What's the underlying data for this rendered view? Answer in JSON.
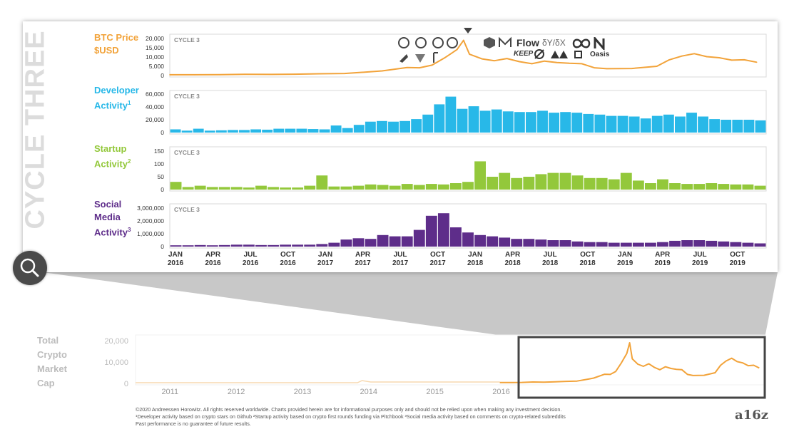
{
  "card": {
    "title": "CYCLE THREE",
    "btc_label_line1": "BTC Price",
    "btc_label_line2": "$USD",
    "dev_label_line1": "Developer",
    "dev_label_line2": "Activity",
    "dev_sup": "1",
    "startup_label_line1": "Startup",
    "startup_label_line2": "Activity",
    "startup_sup": "2",
    "social_label_line1": "Social",
    "social_label_line2": "Media",
    "social_label_line3": "Activity",
    "social_sup": "3",
    "logo_text_1": "Flow",
    "logo_text_2": "δY/δX",
    "logo_text_3": "KEEP",
    "logo_text_4": "Oasis"
  },
  "bottom": {
    "label_line1": "Total",
    "label_line2": "Crypto",
    "label_line3": "Market",
    "label_line4": "Cap"
  },
  "footer": {
    "line1": "©2020 Andreessen Horowitz. All rights reserved worldwide.       Charts provided herein are for informational purposes only and should not be relied upon when making any investment decision.",
    "line2": "¹Developer activity based on crypto stars on Github          ²Startup activity based on crypto first rounds funding via Pitchbook          ³Social media activity based on comments on crypto-related subreddits",
    "line3": "Past performance is no guarantee of future results.",
    "brand": "a16z"
  },
  "colors": {
    "btc": "#f2a33a",
    "developer": "#28b8e8",
    "startup": "#93c83b",
    "social": "#5e2d8a"
  },
  "chart_data": [
    {
      "type": "line",
      "title": "CYCLE 3",
      "ylabel": "BTC Price $USD",
      "ylim": [
        0,
        20000
      ],
      "yticks": [
        "20,000",
        "15,000",
        "10,000",
        "5,000",
        "0"
      ],
      "x": [
        "2016-01",
        "2016-03",
        "2016-05",
        "2016-07",
        "2016-09",
        "2016-11",
        "2017-01",
        "2017-03",
        "2017-05",
        "2017-06",
        "2017-08",
        "2017-09",
        "2017-10",
        "2017-11",
        "2017-12",
        "2017-12-17",
        "2018-01",
        "2018-02",
        "2018-03",
        "2018-04",
        "2018-05",
        "2018-06",
        "2018-07",
        "2018-08",
        "2018-09",
        "2018-10",
        "2018-11",
        "2018-12",
        "2019-02",
        "2019-04",
        "2019-05",
        "2019-06",
        "2019-07",
        "2019-08",
        "2019-09",
        "2019-10",
        "2019-11",
        "2019-12"
      ],
      "values": [
        430,
        420,
        450,
        650,
        610,
        740,
        950,
        1100,
        2000,
        2500,
        4300,
        4200,
        5600,
        9500,
        14000,
        19000,
        11500,
        9000,
        8000,
        9200,
        7500,
        6400,
        7800,
        7000,
        6600,
        6400,
        4200,
        3700,
        3800,
        5000,
        8500,
        10500,
        11800,
        10200,
        9600,
        8300,
        8500,
        7200
      ]
    },
    {
      "type": "bar",
      "title": "CYCLE 3",
      "ylabel": "Developer Activity",
      "ylim": [
        0,
        60000
      ],
      "yticks": [
        "60,000",
        "40,000",
        "20,000",
        "0"
      ],
      "values": [
        5000,
        3000,
        6000,
        3000,
        3500,
        4000,
        4000,
        5000,
        4500,
        6000,
        6000,
        6000,
        5500,
        5000,
        11000,
        7000,
        12000,
        17000,
        18000,
        17000,
        18000,
        21000,
        28000,
        44000,
        56000,
        37000,
        41000,
        34000,
        36000,
        33000,
        32000,
        32000,
        34000,
        31000,
        32000,
        31000,
        29000,
        28000,
        26000,
        26000,
        25000,
        22000,
        26000,
        28000,
        25000,
        31000,
        25000,
        21000,
        20000,
        20000,
        20000,
        19000
      ]
    },
    {
      "type": "bar",
      "title": "CYCLE 3",
      "ylabel": "Startup Activity",
      "ylim": [
        0,
        150
      ],
      "yticks": [
        "150",
        "100",
        "50",
        "0"
      ],
      "values": [
        30,
        10,
        15,
        10,
        10,
        10,
        8,
        15,
        10,
        8,
        8,
        15,
        55,
        12,
        12,
        15,
        20,
        18,
        15,
        22,
        18,
        22,
        20,
        25,
        30,
        110,
        50,
        65,
        45,
        50,
        60,
        65,
        65,
        55,
        45,
        45,
        40,
        65,
        35,
        25,
        40,
        25,
        22,
        22,
        25,
        22,
        20,
        20,
        15
      ]
    },
    {
      "type": "bar",
      "title": "CYCLE 3",
      "ylabel": "Social Media Activity",
      "ylim": [
        0,
        3000000
      ],
      "yticks": [
        "3,000,000",
        "2,000,000",
        "1,000,000",
        "0"
      ],
      "values": [
        100000,
        100000,
        120000,
        100000,
        120000,
        150000,
        150000,
        120000,
        120000,
        150000,
        150000,
        150000,
        200000,
        300000,
        550000,
        650000,
        600000,
        900000,
        800000,
        800000,
        1300000,
        2400000,
        2600000,
        1500000,
        1100000,
        900000,
        800000,
        700000,
        600000,
        600000,
        550000,
        500000,
        500000,
        400000,
        350000,
        350000,
        300000,
        300000,
        300000,
        300000,
        350000,
        450000,
        500000,
        500000,
        450000,
        400000,
        350000,
        300000,
        250000
      ]
    },
    {
      "type": "area",
      "ylabel": "Total Crypto Market Cap",
      "ylim": [
        0,
        20000
      ],
      "yticks": [
        "20,000",
        "10,000",
        "0"
      ],
      "xticks": [
        "2011",
        "2012",
        "2013",
        "2014",
        "2015",
        "2016"
      ]
    }
  ],
  "x_axis": {
    "months": [
      "JAN",
      "APR",
      "JUL",
      "OCT",
      "JAN",
      "APR",
      "JUL",
      "OCT",
      "JAN",
      "APR",
      "JUL",
      "OCT",
      "JAN",
      "APR",
      "JUL",
      "OCT"
    ],
    "years": [
      "2016",
      "2016",
      "2016",
      "2016",
      "2017",
      "2017",
      "2017",
      "2017",
      "2018",
      "2018",
      "2018",
      "2018",
      "2019",
      "2019",
      "2019",
      "2019"
    ]
  }
}
